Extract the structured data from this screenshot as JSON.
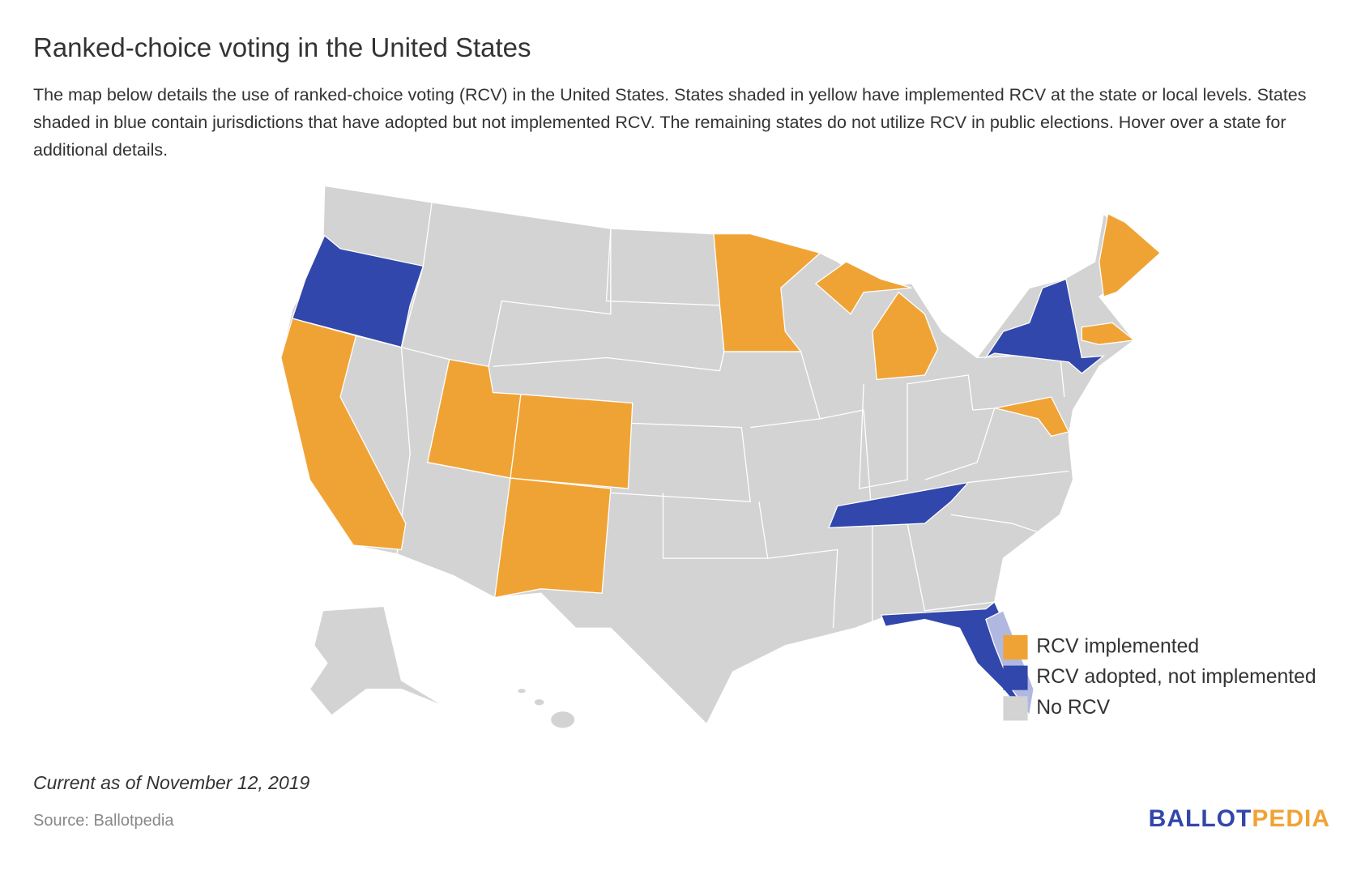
{
  "title": "Ranked-choice voting in the United States",
  "description": "The map below details the use of ranked-choice voting (RCV) in the United States. States shaded in yellow have implemented RCV at the state or local levels. States shaded in blue contain jurisdictions that have adopted but not implemented RCV. The remaining states do not utilize RCV in public elections. Hover over a state for additional details.",
  "legend": [
    {
      "label": "RCV implemented",
      "color": "#f0a335"
    },
    {
      "label": "RCV adopted, not implemented",
      "color": "#3247ab"
    },
    {
      "label": "No RCV",
      "color": "#d3d3d3"
    }
  ],
  "partial_color": "#b0b8e0",
  "note": "Current as of November 12, 2019",
  "source": "Source: Ballotpedia",
  "logo": {
    "first": "BALLOT",
    "second": "PEDIA",
    "first_color": "#3247ab",
    "second_color": "#f0a335"
  }
}
